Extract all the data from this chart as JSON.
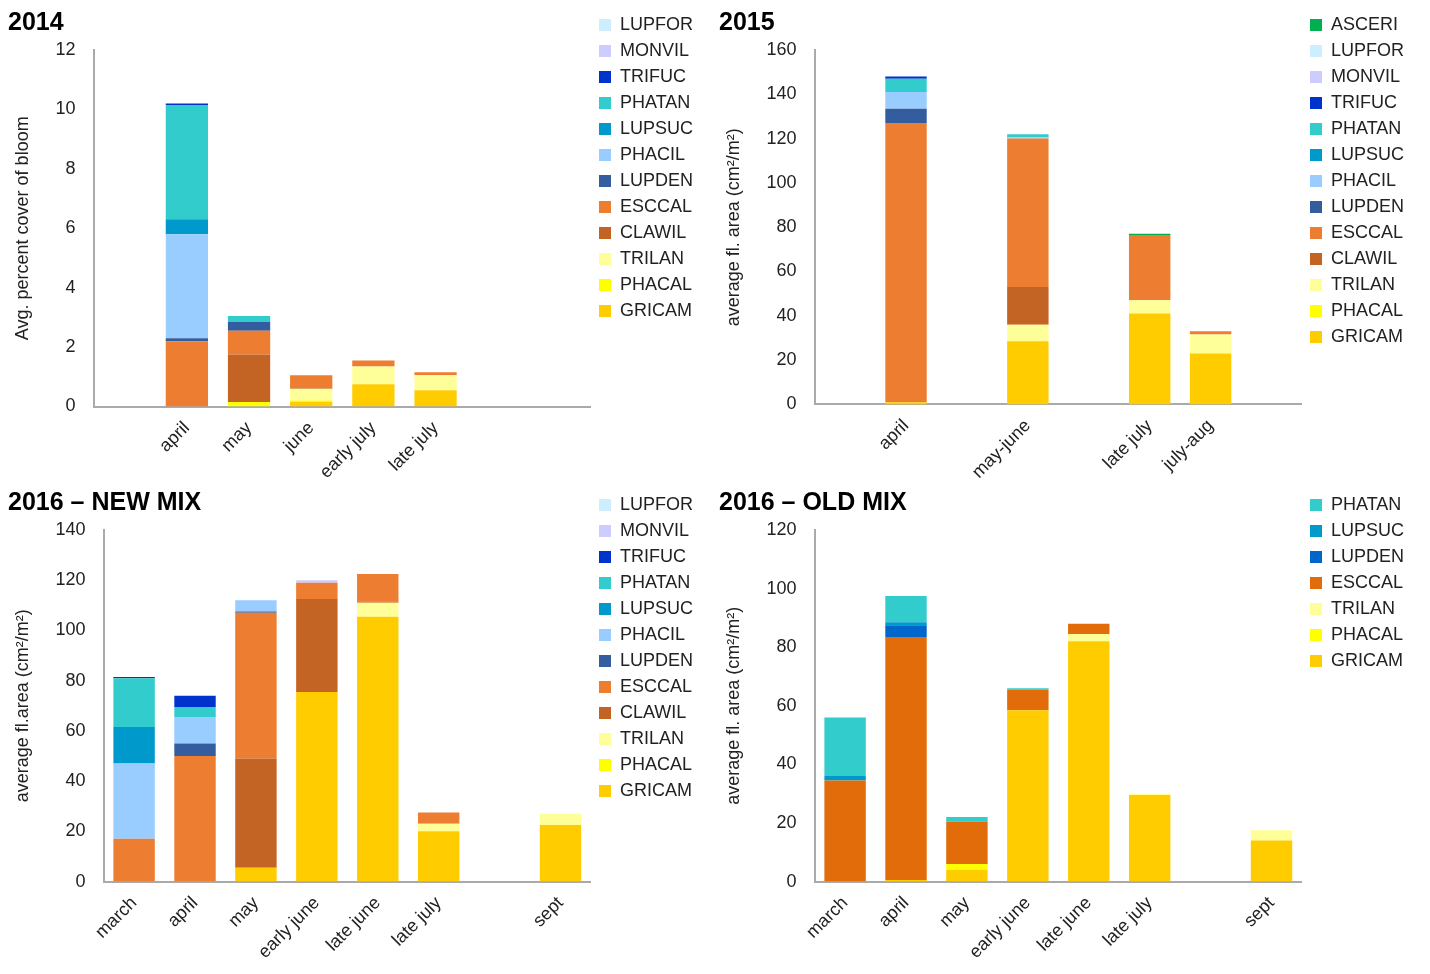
{
  "chart_data": [
    {
      "type": "bar",
      "title": "2014",
      "ylabel": "Avg. percent cover of bloom",
      "categories": [
        null,
        "april",
        "may",
        "june",
        "early july",
        "late july",
        null,
        null
      ],
      "stacked": true,
      "ylim": [
        0,
        12
      ],
      "yticks": [
        0,
        2,
        4,
        6,
        8,
        10,
        12
      ],
      "grid": false,
      "legend": "right",
      "series": [
        {
          "name": "GRICAM",
          "color": "#ffcc00",
          "values": [
            null,
            null,
            null,
            0.15,
            0.75,
            0.55,
            null,
            null
          ]
        },
        {
          "name": "PHACAL",
          "color": "#ffff00",
          "values": [
            null,
            null,
            0.15,
            0.05,
            null,
            null,
            null,
            null
          ]
        },
        {
          "name": "TRILAN",
          "color": "#ffff99",
          "values": [
            null,
            null,
            null,
            0.4,
            0.6,
            0.5,
            null,
            null
          ]
        },
        {
          "name": "CLAWIL",
          "color": "#c46424",
          "values": [
            null,
            null,
            1.6,
            0.05,
            null,
            null,
            null,
            null
          ]
        },
        {
          "name": "ESCCAL",
          "color": "#ed7d31",
          "values": [
            null,
            2.2,
            0.8,
            0.4,
            0.2,
            0.1,
            null,
            null
          ]
        },
        {
          "name": "LUPDEN",
          "color": "#335d9e",
          "values": [
            null,
            0.1,
            0.3,
            null,
            null,
            null,
            null,
            null
          ]
        },
        {
          "name": "PHACIL",
          "color": "#99ccff",
          "values": [
            null,
            3.5,
            null,
            null,
            null,
            null,
            null,
            null
          ]
        },
        {
          "name": "LUPSUC",
          "color": "#0099cc",
          "values": [
            null,
            0.5,
            null,
            null,
            null,
            null,
            null,
            null
          ]
        },
        {
          "name": "PHATAN",
          "color": "#33cccc",
          "values": [
            null,
            3.85,
            0.2,
            null,
            null,
            null,
            null,
            null
          ]
        },
        {
          "name": "TRIFUC",
          "color": "#0033cc",
          "values": [
            null,
            0.05,
            null,
            null,
            null,
            null,
            null,
            null
          ]
        },
        {
          "name": "MONVIL",
          "color": "#ccccff",
          "values": [
            null,
            null,
            null,
            null,
            null,
            null,
            null,
            null
          ]
        },
        {
          "name": "LUPFOR",
          "color": "#cceeff",
          "values": [
            null,
            null,
            null,
            null,
            null,
            null,
            null,
            null
          ]
        }
      ]
    },
    {
      "type": "bar",
      "title": "2015",
      "ylabel": "average fl. area (cm²/m²)",
      "categories": [
        null,
        "april",
        null,
        "may-june",
        null,
        "late july",
        "july-aug",
        null
      ],
      "stacked": true,
      "ylim": [
        0,
        160
      ],
      "yticks": [
        0,
        20,
        40,
        60,
        80,
        100,
        120,
        140,
        160
      ],
      "grid": false,
      "legend": "right",
      "series": [
        {
          "name": "GRICAM",
          "color": "#ffcc00",
          "values": [
            null,
            1,
            null,
            28.5,
            null,
            41,
            23,
            null
          ]
        },
        {
          "name": "PHACAL",
          "color": "#ffff00",
          "values": [
            null,
            null,
            null,
            null,
            null,
            null,
            null,
            null
          ]
        },
        {
          "name": "TRILAN",
          "color": "#ffff99",
          "values": [
            null,
            null,
            null,
            7.5,
            null,
            6,
            8.5,
            null
          ]
        },
        {
          "name": "CLAWIL",
          "color": "#c46424",
          "values": [
            null,
            null,
            null,
            17,
            null,
            null,
            null,
            null
          ]
        },
        {
          "name": "ESCCAL",
          "color": "#ed7d31",
          "values": [
            null,
            126,
            null,
            67,
            null,
            29.5,
            1.5,
            null
          ]
        },
        {
          "name": "LUPDEN",
          "color": "#335d9e",
          "values": [
            null,
            6.5,
            null,
            null,
            null,
            null,
            null,
            null
          ]
        },
        {
          "name": "PHACIL",
          "color": "#99ccff",
          "values": [
            null,
            7.5,
            null,
            0.5,
            null,
            null,
            null,
            null
          ]
        },
        {
          "name": "LUPSUC",
          "color": "#0099cc",
          "values": [
            null,
            null,
            null,
            null,
            null,
            null,
            null,
            null
          ]
        },
        {
          "name": "PHATAN",
          "color": "#33cccc",
          "values": [
            null,
            6,
            null,
            1.5,
            null,
            null,
            null,
            null
          ]
        },
        {
          "name": "TRIFUC",
          "color": "#0033cc",
          "values": [
            null,
            1,
            null,
            null,
            null,
            null,
            null,
            null
          ]
        },
        {
          "name": "MONVIL",
          "color": "#ccccff",
          "values": [
            null,
            null,
            null,
            null,
            null,
            null,
            null,
            null
          ]
        },
        {
          "name": "LUPFOR",
          "color": "#cceeff",
          "values": [
            null,
            null,
            null,
            null,
            null,
            null,
            null,
            null
          ]
        },
        {
          "name": "ASCERI",
          "color": "#00b050",
          "values": [
            null,
            null,
            null,
            null,
            null,
            0.5,
            null,
            null
          ]
        }
      ]
    },
    {
      "type": "bar",
      "title": "2016 – NEW MIX",
      "ylabel": "average fl.area (cm²/m²)",
      "categories": [
        "march",
        "april",
        "may",
        "early june",
        "late june",
        "late july",
        null,
        "sept"
      ],
      "stacked": true,
      "ylim": [
        0,
        140
      ],
      "yticks": [
        0,
        20,
        40,
        60,
        80,
        100,
        120,
        140
      ],
      "grid": false,
      "legend": "right",
      "series": [
        {
          "name": "GRICAM",
          "color": "#ffcc00",
          "values": [
            null,
            null,
            5.5,
            75.5,
            105.5,
            20,
            null,
            22.5
          ]
        },
        {
          "name": "PHACAL",
          "color": "#ffff00",
          "values": [
            null,
            null,
            null,
            null,
            null,
            null,
            null,
            null
          ]
        },
        {
          "name": "TRILAN",
          "color": "#ffff99",
          "values": [
            null,
            null,
            null,
            null,
            5.5,
            3,
            null,
            4.5
          ]
        },
        {
          "name": "CLAWIL",
          "color": "#c46424",
          "values": [
            null,
            null,
            43.5,
            37,
            0.5,
            null,
            null,
            null
          ]
        },
        {
          "name": "ESCCAL",
          "color": "#ed7d31",
          "values": [
            17,
            50,
            58,
            6.5,
            11,
            4.5,
            null,
            null
          ]
        },
        {
          "name": "LUPDEN",
          "color": "#335d9e",
          "values": [
            null,
            5,
            0.5,
            null,
            null,
            null,
            null,
            null
          ]
        },
        {
          "name": "PHACIL",
          "color": "#99ccff",
          "values": [
            30,
            10.5,
            4.5,
            null,
            null,
            null,
            null,
            null
          ]
        },
        {
          "name": "LUPSUC",
          "color": "#0099cc",
          "values": [
            14.5,
            null,
            null,
            null,
            null,
            null,
            null,
            null
          ]
        },
        {
          "name": "PHATAN",
          "color": "#33cccc",
          "values": [
            19.5,
            4,
            null,
            null,
            null,
            null,
            null,
            null
          ]
        },
        {
          "name": "TRIFUC",
          "color": "#0033cc",
          "values": [
            0.5,
            4.5,
            null,
            null,
            null,
            null,
            null,
            null
          ]
        },
        {
          "name": "MONVIL",
          "color": "#ccccff",
          "values": [
            null,
            null,
            null,
            1,
            null,
            null,
            null,
            null
          ]
        },
        {
          "name": "LUPFOR",
          "color": "#cceeff",
          "values": [
            null,
            null,
            null,
            null,
            null,
            null,
            null,
            null
          ]
        }
      ]
    },
    {
      "type": "bar",
      "title": "2016 – OLD MIX",
      "ylabel": "average fl. area (cm²/m²)",
      "categories": [
        "march",
        "april",
        "may",
        "early june",
        "late june",
        "late july",
        null,
        "sept"
      ],
      "stacked": true,
      "ylim": [
        0,
        120
      ],
      "yticks": [
        0,
        20,
        40,
        60,
        80,
        100,
        120
      ],
      "grid": false,
      "legend": "right",
      "series": [
        {
          "name": "GRICAM",
          "color": "#ffcc00",
          "values": [
            null,
            0.5,
            4,
            58.5,
            82,
            29.5,
            null,
            14
          ]
        },
        {
          "name": "PHACAL",
          "color": "#ffff00",
          "values": [
            null,
            null,
            2,
            null,
            null,
            null,
            null,
            null
          ]
        },
        {
          "name": "TRILAN",
          "color": "#ffff99",
          "values": [
            null,
            null,
            null,
            null,
            2.5,
            0.5,
            null,
            3.5
          ]
        },
        {
          "name": "ESCCAL",
          "color": "#e36c0a",
          "values": [
            34.5,
            83,
            14.5,
            7,
            3.5,
            null,
            null,
            null
          ]
        },
        {
          "name": "LUPDEN",
          "color": "#0066cc",
          "values": [
            null,
            4,
            null,
            null,
            null,
            null,
            null,
            null
          ]
        },
        {
          "name": "LUPSUC",
          "color": "#0099cc",
          "values": [
            1.5,
            1,
            null,
            null,
            null,
            null,
            null,
            null
          ]
        },
        {
          "name": "PHATAN",
          "color": "#33cccc",
          "values": [
            20,
            9,
            1.5,
            0.5,
            null,
            null,
            null,
            null
          ]
        }
      ]
    }
  ]
}
